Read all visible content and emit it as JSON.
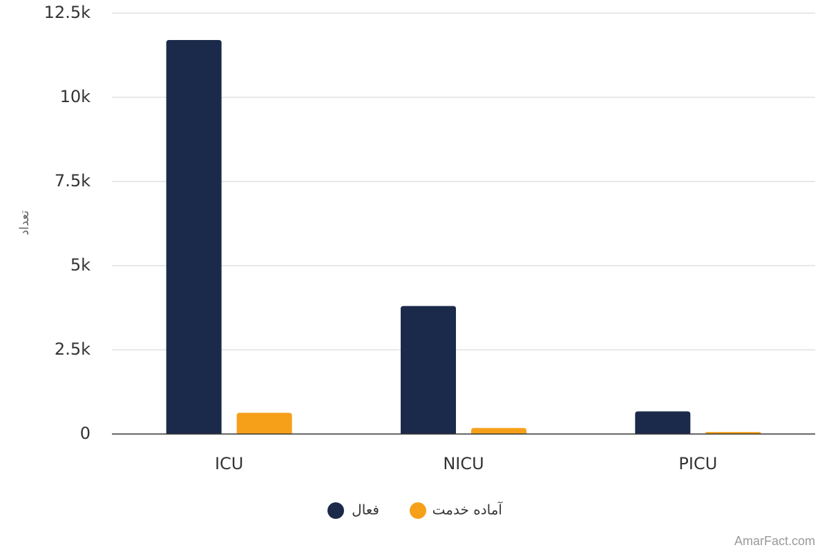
{
  "chart_data": {
    "type": "bar",
    "categories": [
      "ICU",
      "NICU",
      "PICU"
    ],
    "series": [
      {
        "name": "فعال",
        "values": [
          11700,
          3800,
          670
        ],
        "color": "#1b2a4a"
      },
      {
        "name": "آماده خدمت",
        "values": [
          630,
          180,
          60
        ],
        "color": "#f6a01a"
      }
    ],
    "ylabel": "تعداد",
    "ylim": [
      0,
      12500
    ],
    "yticks": [
      {
        "value": 0,
        "label": "0"
      },
      {
        "value": 2500,
        "label": "2.5k"
      },
      {
        "value": 5000,
        "label": "5k"
      },
      {
        "value": 7500,
        "label": "7.5k"
      },
      {
        "value": 10000,
        "label": "10k"
      },
      {
        "value": 12500,
        "label": "12.5k"
      }
    ],
    "grid": true,
    "legend_position": "bottom-center"
  },
  "credit": "AmarFact.com"
}
